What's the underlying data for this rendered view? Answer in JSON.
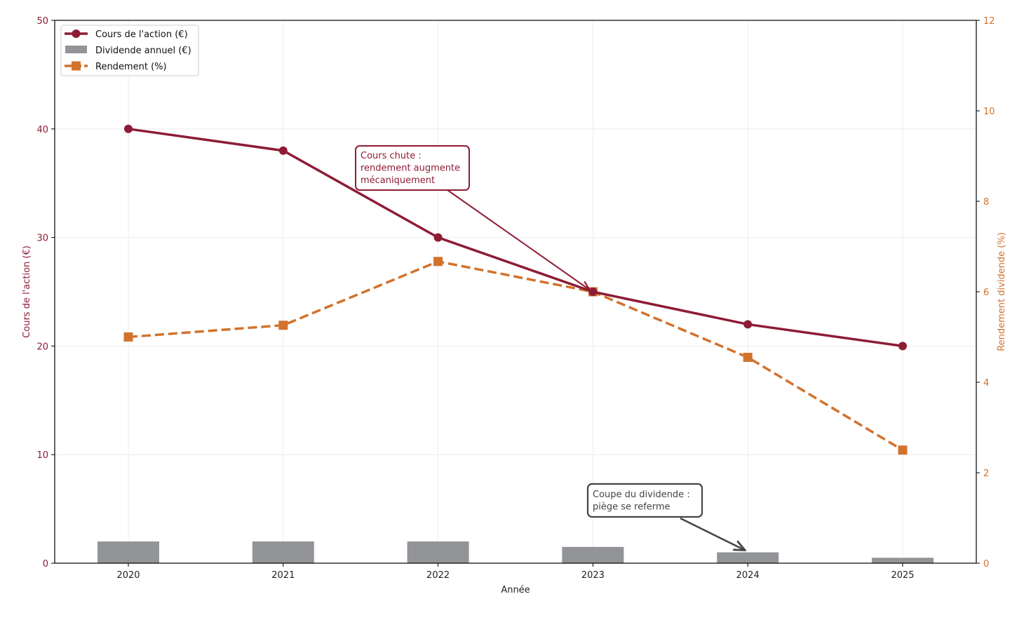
{
  "chart_data": {
    "type": "bar+line",
    "title": "",
    "xlabel": "Année",
    "ylabel_left": "Cours de l'action (€)",
    "ylabel_right": "Rendement dividende (%)",
    "categories": [
      "2020",
      "2021",
      "2022",
      "2023",
      "2024",
      "2025"
    ],
    "ylim_left": [
      0,
      50
    ],
    "ylim_right": [
      0,
      12
    ],
    "yticks_left": [
      0,
      10,
      20,
      30,
      40,
      50
    ],
    "yticks_right": [
      0,
      2,
      4,
      6,
      8,
      10,
      12
    ],
    "grid": true,
    "legend_position": "upper left",
    "series": [
      {
        "name": "Cours de l'action (€)",
        "type": "line",
        "axis": "left",
        "style": "solid",
        "marker": "circle",
        "color": "#8e1c35",
        "values": [
          40,
          38,
          30,
          25,
          22,
          20
        ]
      },
      {
        "name": "Dividende annuel (€)",
        "type": "bar",
        "axis": "left",
        "color": "#939497",
        "values": [
          2.0,
          2.0,
          2.0,
          1.5,
          1.0,
          0.5
        ]
      },
      {
        "name": "Rendement (%)",
        "type": "line",
        "axis": "right",
        "style": "dashed",
        "marker": "square",
        "color": "#d2722c",
        "values": [
          5.0,
          5.26,
          6.67,
          6.0,
          4.55,
          2.5
        ]
      }
    ],
    "annotations": [
      {
        "text": [
          "Cours chute :",
          "rendement augmente",
          "mécaniquement"
        ],
        "target": "2023",
        "target_value": 25,
        "axis": "left",
        "color": "#8e1c35"
      },
      {
        "text": [
          "Coupe du dividende :",
          "piège se referme"
        ],
        "target": "2024",
        "target_value": 1.0,
        "axis": "left",
        "color": "#444444"
      }
    ]
  },
  "colors": {
    "price": "#8e1c35",
    "dividend": "#939497",
    "yield": "#d2722c",
    "annotation_dark": "#444444",
    "grid": "#eeeeee",
    "axis": "#000000"
  }
}
